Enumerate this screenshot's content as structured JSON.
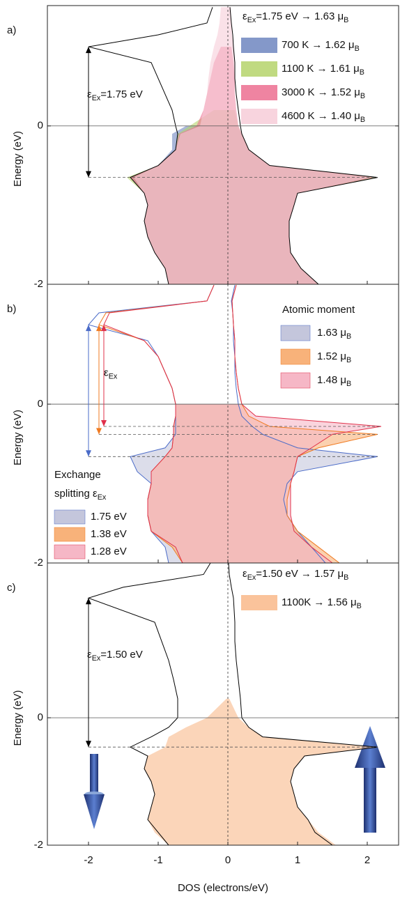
{
  "chart_data": [
    {
      "type": "area",
      "label": "a)",
      "y_label": "Energy (eV)",
      "ylim": [
        -2,
        1.52
      ],
      "yticks": [
        -2,
        0
      ],
      "xlim": [
        -2.59,
        2.45
      ],
      "xticks": [
        -2,
        -1,
        0,
        1,
        2
      ],
      "fermi_level": 0,
      "annotation": "εEx=1.75 eV",
      "energy": [
        -2,
        -1.8,
        -1.6,
        -1.4,
        -1.2,
        -1.0,
        -0.85,
        -0.65,
        -0.5,
        -0.3,
        -0.1,
        0,
        0.2,
        0.4,
        0.6,
        0.8,
        1.0,
        1.15,
        1.3,
        1.5
      ],
      "series": [
        {
          "name": "εEx=1.75 eV → 1.63 μB",
          "style": "line",
          "color": "#000000",
          "up": [
            1.3,
            1.05,
            0.9,
            0.88,
            0.88,
            0.95,
            1.0,
            2.15,
            0.6,
            0.3,
            0.2,
            0.18,
            0.15,
            0.12,
            0.1,
            0.1,
            0.08,
            0.07,
            0.05,
            0.03
          ],
          "down": [
            -0.85,
            -0.9,
            -1.05,
            -1.15,
            -1.2,
            -1.15,
            -1.2,
            -1.4,
            -1.0,
            -0.75,
            -0.72,
            -0.75,
            -0.8,
            -0.9,
            -1.0,
            -1.1,
            -2.0,
            -1.0,
            -0.3,
            -0.22
          ]
        },
        {
          "name": "700 K → 1.62 μB",
          "style": "area",
          "color": "#6f86c0",
          "up": [
            1.3,
            1.05,
            0.9,
            0.88,
            0.88,
            0.95,
            1.0,
            2.1,
            0.6,
            0.3,
            0.2,
            0.15,
            null,
            null,
            null,
            null,
            null,
            null,
            null,
            null
          ],
          "down": [
            -0.85,
            -0.9,
            -1.05,
            -1.15,
            -1.2,
            -1.15,
            -1.2,
            -1.4,
            -1.0,
            -0.8,
            -0.8,
            -0.6,
            null,
            null,
            null,
            null,
            null,
            null,
            null,
            null
          ]
        },
        {
          "name": "1100 K → 1.61 μB",
          "style": "area",
          "color": "#b5d36b",
          "up": [
            1.3,
            1.05,
            0.9,
            0.88,
            0.88,
            0.95,
            1.0,
            2.15,
            0.6,
            0.3,
            0.2,
            0.15,
            0.1,
            null,
            null,
            null,
            null,
            null,
            null,
            null
          ],
          "down": [
            -0.85,
            -0.9,
            -1.05,
            -1.15,
            -1.2,
            -1.15,
            -1.2,
            -1.45,
            -1.0,
            -0.75,
            -0.72,
            -0.55,
            -0.2,
            null,
            null,
            null,
            null,
            null,
            null,
            null
          ]
        },
        {
          "name": "3000 K → 1.52 μB",
          "style": "area",
          "color": "#ec6e90",
          "up": [
            1.3,
            1.05,
            0.9,
            0.88,
            0.88,
            0.95,
            1.0,
            2.1,
            0.6,
            0.3,
            0.2,
            0.15,
            0.12,
            0.1,
            0.1,
            0.08,
            0.05,
            null,
            null,
            null
          ],
          "down": [
            -0.85,
            -0.9,
            -1.05,
            -1.15,
            -1.2,
            -1.15,
            -1.2,
            -1.4,
            -1.0,
            -0.75,
            -0.7,
            -0.45,
            -0.35,
            -0.3,
            -0.25,
            -0.2,
            -0.1,
            null,
            null,
            null
          ]
        },
        {
          "name": "4600 K → 1.40 μB",
          "style": "area",
          "color": "#f7cdd8",
          "up": [
            1.3,
            1.05,
            0.9,
            0.88,
            0.88,
            0.95,
            1.0,
            2.05,
            0.6,
            0.3,
            0.2,
            0.15,
            0.12,
            0.1,
            0.1,
            0.1,
            0.08,
            0.06,
            0.05,
            0.04
          ],
          "down": [
            -0.85,
            -0.9,
            -1.05,
            -1.15,
            -1.2,
            -1.15,
            -1.2,
            -1.35,
            -1.0,
            -0.75,
            -0.68,
            -0.4,
            -0.35,
            -0.3,
            -0.28,
            -0.25,
            -0.2,
            -0.15,
            -0.12,
            -0.1
          ]
        }
      ]
    },
    {
      "type": "area",
      "label": "b)",
      "y_label": "Energy (eV)",
      "ylim": [
        -2,
        1.51
      ],
      "yticks": [
        -2,
        0
      ],
      "xlim": [
        -2.59,
        2.45
      ],
      "xticks": [
        -2,
        -1,
        0,
        1,
        2
      ],
      "fermi_level": 0,
      "annotation": "εEx",
      "legend_title": "Atomic moment",
      "legend2_title": "Exchange splitting εEx",
      "energy": [
        -2,
        -1.8,
        -1.6,
        -1.4,
        -1.2,
        -1.0,
        -0.85,
        -0.66,
        -0.55,
        -0.38,
        -0.28,
        -0.15,
        0,
        0.2,
        0.4,
        0.6,
        0.8,
        1.0,
        1.15,
        1.3,
        1.5
      ],
      "series": [
        {
          "name": "1.75 eV",
          "moment": "1.63 μB",
          "style": "both",
          "color": "#c4c6dc",
          "line_color": "#4a6bc8",
          "up": [
            1.4,
            1.2,
            1.0,
            0.85,
            0.8,
            0.85,
            1.0,
            2.15,
            1.0,
            0.5,
            0.35,
            0.2,
            0.15,
            0.12,
            0.1,
            0.1,
            0.08,
            0.08,
            0.07,
            0.05,
            0.1
          ],
          "down": [
            -0.85,
            -0.9,
            -1.1,
            -1.15,
            -1.15,
            -1.1,
            -1.3,
            -1.4,
            -0.9,
            -0.75,
            -0.75,
            -0.75,
            -0.75,
            -0.8,
            -0.9,
            -1.0,
            -1.15,
            -2.0,
            -1.85,
            -0.3,
            -0.2
          ]
        },
        {
          "name": "1.38 eV",
          "moment": "1.52 μB",
          "style": "both",
          "color": "#f8b27a",
          "line_color": "#f07a20",
          "up": [
            1.6,
            1.3,
            1.0,
            0.85,
            0.85,
            0.9,
            0.95,
            1.0,
            1.3,
            2.15,
            0.6,
            0.3,
            0.2,
            0.15,
            0.12,
            0.1,
            0.1,
            0.08,
            0.07,
            0.06,
            0.12
          ],
          "down": [
            -0.65,
            -0.8,
            -1.1,
            -1.15,
            -1.15,
            -1.1,
            -1.1,
            -0.9,
            -0.8,
            -0.78,
            -0.78,
            -0.75,
            -0.75,
            -0.8,
            -0.9,
            -1.0,
            -1.2,
            -1.85,
            -1.75,
            -0.3,
            -0.2
          ]
        },
        {
          "name": "1.28 eV",
          "moment": "1.48 μB",
          "style": "both",
          "color": "#f6b7c6",
          "line_color": "#e0304a",
          "up": [
            1.5,
            1.2,
            0.95,
            0.9,
            0.9,
            0.9,
            0.95,
            1.0,
            1.2,
            1.5,
            2.2,
            0.4,
            0.2,
            0.15,
            0.12,
            0.1,
            0.1,
            0.08,
            0.07,
            0.06,
            0.12
          ],
          "down": [
            -0.65,
            -0.75,
            -1.1,
            -1.15,
            -1.15,
            -1.1,
            -1.1,
            -0.9,
            -0.8,
            -0.78,
            -0.78,
            -0.75,
            -0.75,
            -0.8,
            -0.9,
            -1.0,
            -1.2,
            -1.78,
            -1.7,
            -0.3,
            -0.2
          ]
        }
      ]
    },
    {
      "type": "area",
      "label": "c)",
      "y_label": "Energy (eV)",
      "ylim": [
        -2,
        2.43
      ],
      "yticks": [
        -2,
        0
      ],
      "xlim": [
        -2.59,
        2.45
      ],
      "xticks": [
        -2,
        -1,
        0,
        1,
        2
      ],
      "fermi_level": 0,
      "x_label": "DOS (electrons/eV)",
      "annotation": "εEx=1.50 eV",
      "energy": [
        -2,
        -1.8,
        -1.6,
        -1.4,
        -1.2,
        -1.0,
        -0.8,
        -0.6,
        -0.46,
        -0.3,
        -0.15,
        0,
        0.3,
        0.6,
        0.9,
        1.2,
        1.5,
        1.88,
        2.05,
        2.25,
        2.43
      ],
      "series": [
        {
          "name": "εEx=1.50 eV → 1.57 μB",
          "style": "line",
          "color": "#000000",
          "up": [
            1.5,
            1.25,
            1.15,
            1.0,
            0.95,
            0.9,
            0.95,
            1.1,
            2.15,
            0.5,
            0.3,
            0.2,
            0.18,
            0.15,
            0.12,
            0.1,
            0.1,
            0.08,
            0.05,
            0.02,
            0.01
          ],
          "down": [
            -0.85,
            -1.0,
            -1.15,
            -1.1,
            -1.05,
            -1.1,
            -1.2,
            -1.15,
            -1.4,
            -1.1,
            -0.85,
            -0.72,
            -0.72,
            -0.78,
            -0.85,
            -0.95,
            -1.05,
            -2.0,
            -1.5,
            -0.35,
            -0.25
          ]
        },
        {
          "name": "1100K → 1.56 μB",
          "style": "area",
          "color": "#f9b98a",
          "up": [
            1.55,
            1.3,
            1.15,
            1.0,
            0.95,
            0.9,
            0.95,
            1.1,
            2.15,
            0.5,
            0.3,
            0.15,
            0.02,
            null,
            null,
            null,
            null,
            null,
            null,
            null,
            null
          ],
          "down": [
            -0.85,
            -1.05,
            -1.15,
            -1.1,
            -1.05,
            -1.1,
            -1.2,
            -1.15,
            -0.9,
            -0.85,
            -0.6,
            -0.3,
            -0.02,
            null,
            null,
            null,
            null,
            null,
            null,
            null,
            null
          ]
        }
      ]
    }
  ]
}
